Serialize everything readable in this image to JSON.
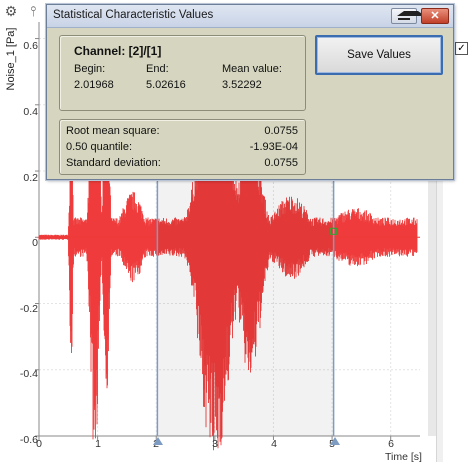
{
  "toolbar": {
    "icons": [
      "gear-icon",
      "cursor-tool-icon"
    ]
  },
  "plot": {
    "y_axis_title": "Noise_1 [Pa]",
    "y_ticks": [
      "0.6",
      "0.4",
      "0.2",
      "0",
      "-0.2",
      "-0.4",
      "-0.6"
    ],
    "x_ticks": [
      "0",
      "1",
      "2",
      "3",
      "4",
      "5",
      "6"
    ],
    "x_axis_title": "Time [s]",
    "signal_color": "#ef3b3b",
    "cursor_color": "#7e9cc2",
    "cursor_positions_s": [
      2.01968,
      5.02616
    ],
    "checkbox_mark": "✓"
  },
  "dialog": {
    "title": "Statistical Characteristic Values",
    "close_label": "✕",
    "channel_title": "Channel: [2]/[1]",
    "begin_label": "Begin:",
    "end_label": "End:",
    "mean_label": "Mean value:",
    "begin_value": "2.01968",
    "end_value": "5.02616",
    "mean_value": "3.52292",
    "stats": [
      {
        "name": "Root mean square:",
        "value": "0.0755"
      },
      {
        "name": "0.50 quantile:",
        "value": "-1.93E-04"
      },
      {
        "name": "Standard deviation:",
        "value": "0.0755"
      }
    ],
    "save_label": "Save Values"
  }
}
